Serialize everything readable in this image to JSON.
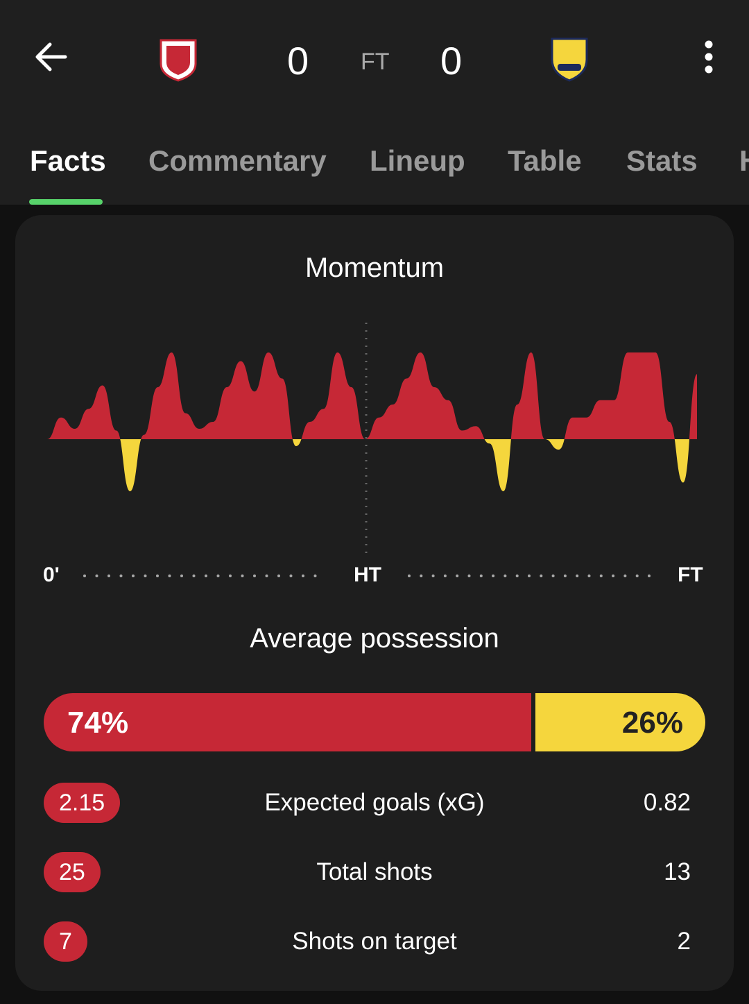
{
  "header": {
    "home_score": "0",
    "status": "FT",
    "away_score": "0"
  },
  "tabs": [
    "Facts",
    "Commentary",
    "Lineup",
    "Table",
    "Stats",
    "H"
  ],
  "momentum": {
    "title": "Momentum",
    "values": [
      0,
      25,
      12,
      35,
      62,
      10,
      -60,
      5,
      60,
      100,
      30,
      12,
      20,
      60,
      90,
      55,
      100,
      70,
      -8,
      20,
      35,
      100,
      60,
      0,
      25,
      40,
      70,
      100,
      60,
      45,
      10,
      15,
      -5,
      -60,
      40,
      100,
      0,
      -12,
      25,
      25,
      45,
      45,
      100,
      100,
      100,
      20,
      -50,
      75
    ],
    "ylim": [
      -100,
      100
    ],
    "home_color": "#c62836",
    "away_color": "#f5d63d",
    "axis_labels": [
      "0'",
      "HT",
      "FT"
    ]
  },
  "possession": {
    "title": "Average possession",
    "values": [
      74,
      26
    ],
    "value_labels": [
      "74%",
      "26%"
    ]
  },
  "stats": [
    {
      "home": "2.15",
      "label": "Expected goals (xG)",
      "away": "0.82"
    },
    {
      "home": "25",
      "label": "Total shots",
      "away": "13"
    },
    {
      "home": "7",
      "label": "Shots on target",
      "away": "2"
    }
  ]
}
